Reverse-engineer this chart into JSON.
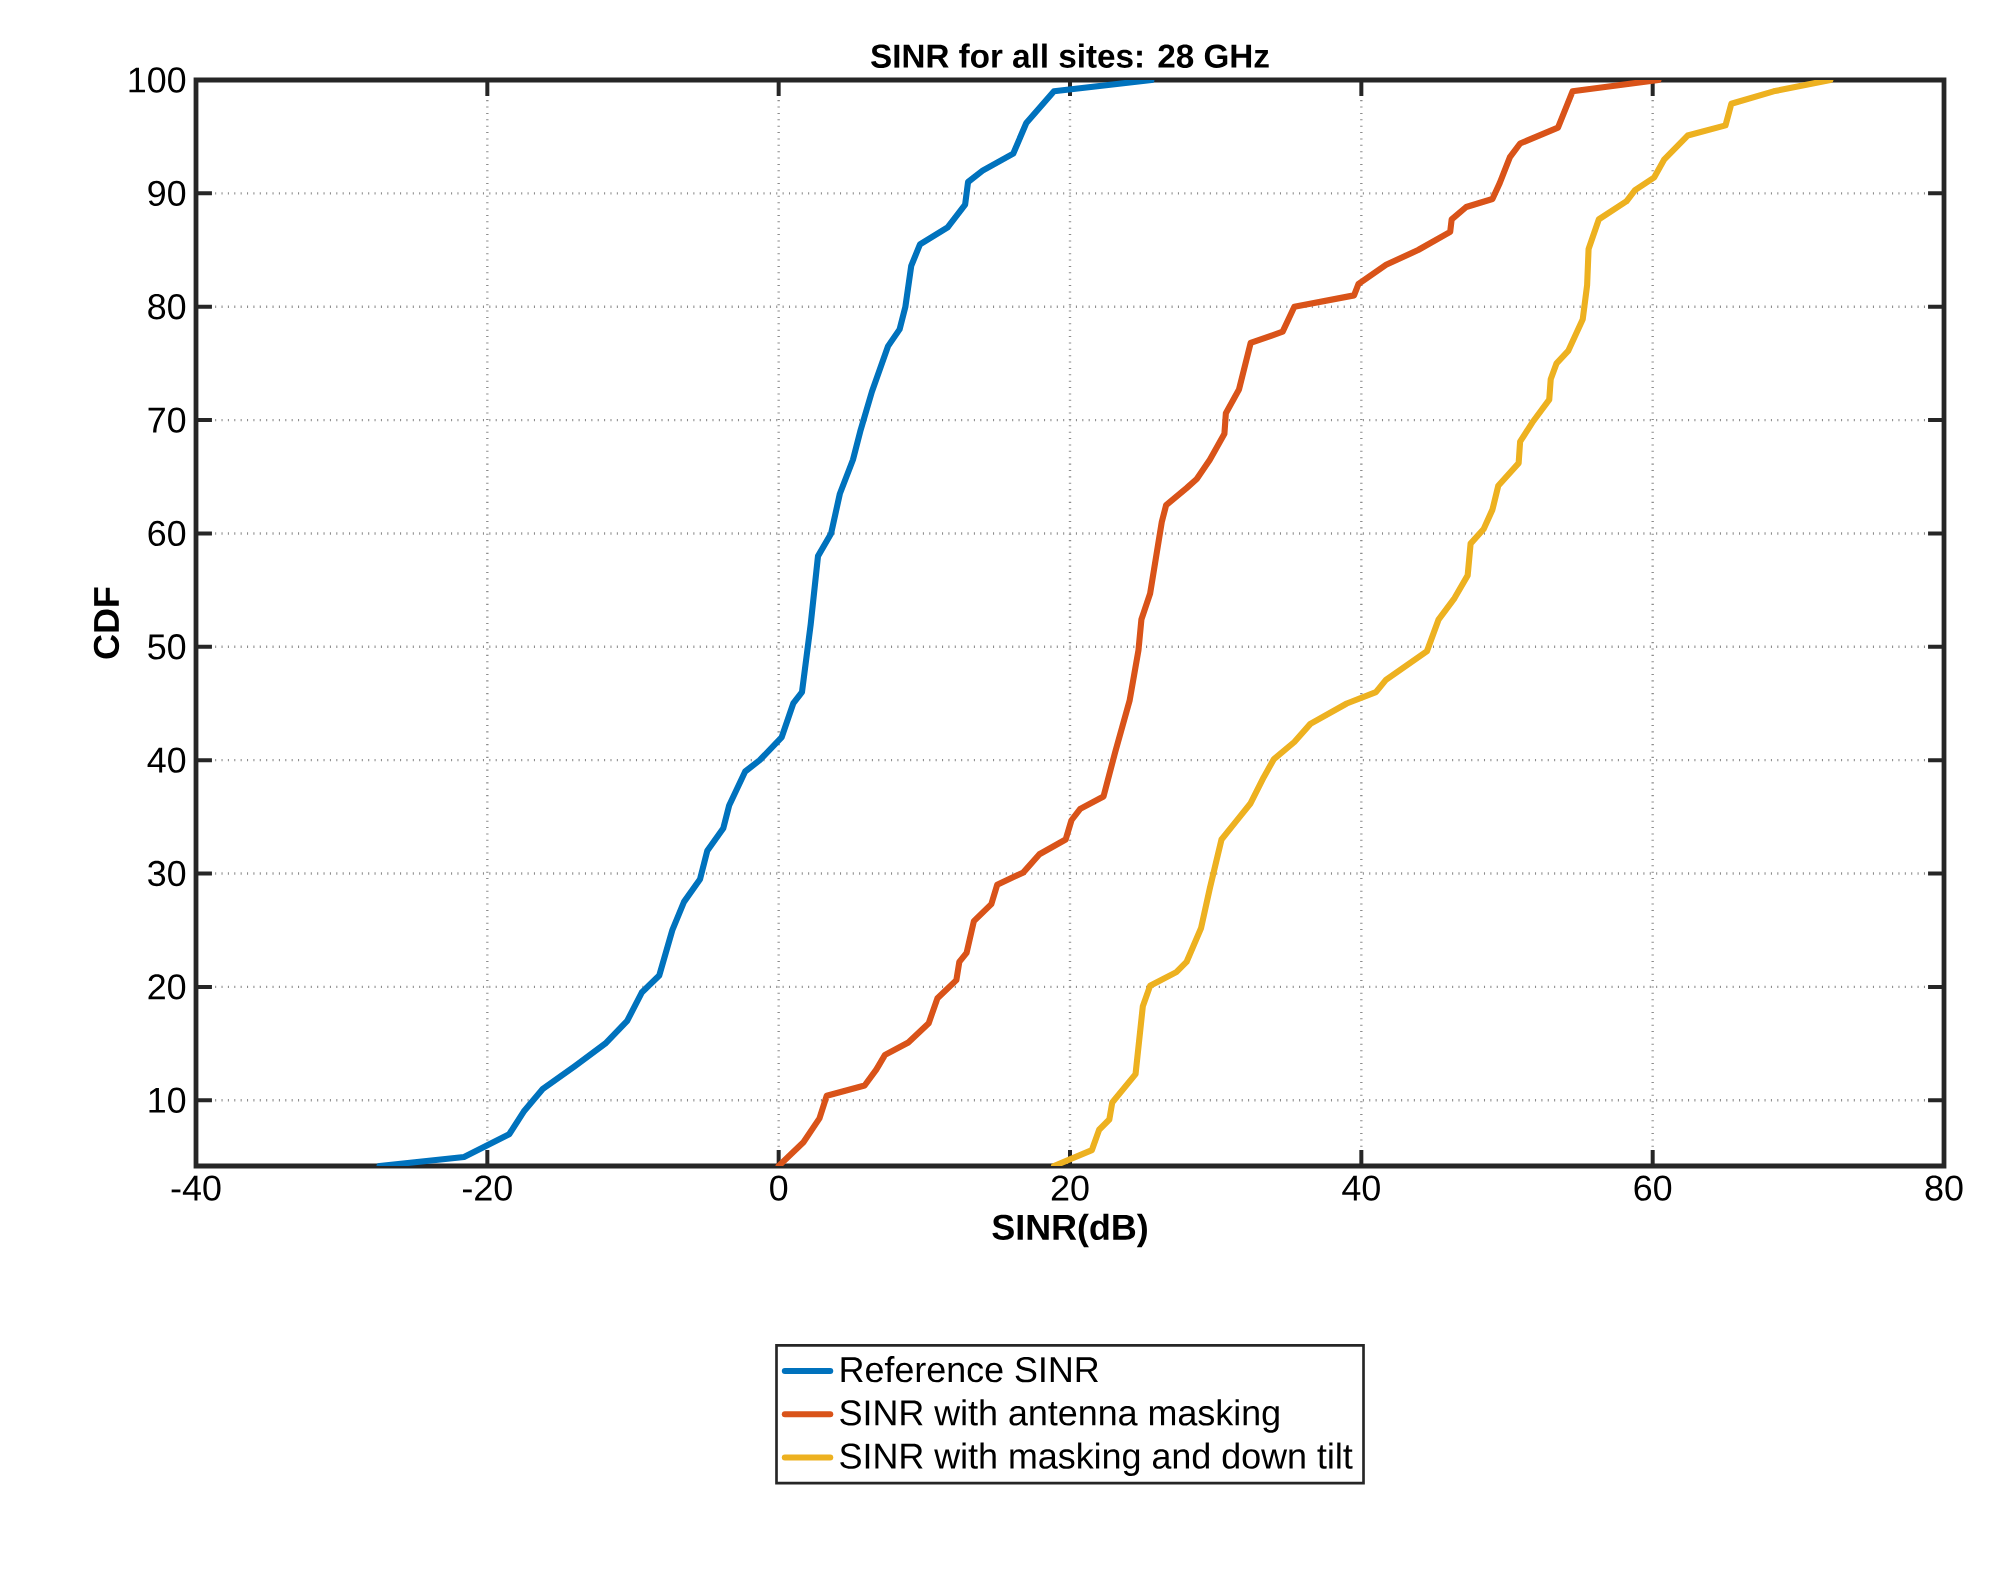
{
  "chart_data": {
    "type": "line",
    "title": "SINR for all sites: 28 GHz",
    "xlabel": "SINR(dB)",
    "ylabel": "CDF",
    "xlim": [
      -40,
      80
    ],
    "ylim": [
      4.2,
      100
    ],
    "xticks": [
      -40,
      -20,
      0,
      20,
      40,
      60,
      80
    ],
    "yticks": [
      10,
      20,
      30,
      40,
      50,
      60,
      70,
      80,
      90,
      100
    ],
    "grid": true,
    "legend": "bottom",
    "series": [
      {
        "name": "Reference SINR",
        "color": "#0072bd",
        "x": [
          -27.4,
          -21.6,
          -18.5,
          -17.5,
          -16.2,
          -14,
          -11.9,
          -10.4,
          -9.4,
          -8.2,
          -7.3,
          -6.5,
          -5.4,
          -4.9,
          -3.8,
          -3.4,
          -2.3,
          -1.3,
          0.2,
          1,
          1.6,
          1.9,
          2.2,
          2.7,
          3.6,
          4.2,
          5.1,
          5.6,
          6.4,
          7.5,
          8.3,
          8.7,
          9.1,
          9.7,
          11.6,
          12.8,
          13,
          14,
          16.1,
          17,
          18.9,
          25.6
        ],
        "values": [
          4.2,
          5,
          7,
          9,
          11,
          13,
          15,
          17,
          19.5,
          21,
          25,
          27.5,
          29.5,
          32,
          34,
          36,
          39,
          40,
          42,
          45,
          46,
          49,
          52,
          58,
          60,
          63.5,
          66.5,
          69,
          72.5,
          76.5,
          78,
          80,
          83.6,
          85.5,
          87,
          89,
          91,
          92,
          93.5,
          96.2,
          99,
          100
        ]
      },
      {
        "name": "SINR with antenna masking",
        "color": "#d95319",
        "x": [
          0,
          1.7,
          2.8,
          3.3,
          5.9,
          6.7,
          7.3,
          8.9,
          10.3,
          10.9,
          12.2,
          12.4,
          12.9,
          13.4,
          14.6,
          15,
          16.8,
          17.9,
          19.7,
          20.1,
          20.7,
          22.3,
          23.1,
          24.1,
          24.7,
          24.9,
          25.5,
          26.3,
          26.6,
          28,
          28.7,
          29.6,
          30.6,
          30.7,
          31.6,
          32.4,
          34.6,
          35.4,
          39.5,
          39.8,
          41.7,
          43.9,
          46.1,
          46.2,
          47.2,
          49,
          49.5,
          50.2,
          50.9,
          53.5,
          54.5,
          60.4
        ],
        "values": [
          4.2,
          6.3,
          8.4,
          10.4,
          11.3,
          12.7,
          14,
          15.1,
          16.8,
          19,
          20.6,
          22.2,
          23,
          25.8,
          27.3,
          29,
          30.1,
          31.7,
          33,
          34.7,
          35.7,
          36.8,
          40.7,
          45.3,
          49.7,
          52.4,
          54.7,
          61,
          62.5,
          64,
          64.8,
          66.5,
          68.8,
          70.6,
          72.7,
          76.8,
          77.8,
          80,
          81,
          82,
          83.7,
          85,
          86.6,
          87.7,
          88.8,
          89.5,
          90.9,
          93.2,
          94.4,
          95.8,
          99,
          100
        ]
      },
      {
        "name": "SINR with masking and down tilt",
        "color": "#edb120",
        "x": [
          18.9,
          21.5,
          22,
          22.7,
          22.9,
          24.5,
          25,
          25.5,
          27.3,
          28,
          29,
          29.6,
          30.4,
          31.4,
          32.4,
          33.3,
          34,
          35.4,
          36.5,
          39,
          41,
          41.7,
          44.5,
          45.3,
          46.4,
          47.3,
          47.5,
          48.4,
          49,
          49.4,
          50.8,
          50.9,
          51.8,
          52.9,
          53,
          53.4,
          54.2,
          55.2,
          55.5,
          55.6,
          56.3,
          58.2,
          58.8,
          60.1,
          60.8,
          62.4,
          65,
          65.4,
          68.3,
          72.2
        ],
        "values": [
          4.2,
          5.6,
          7.4,
          8.3,
          9.8,
          12.3,
          18.3,
          20.1,
          21.3,
          22.2,
          25.2,
          28.7,
          33,
          34.6,
          36.2,
          38.5,
          40.1,
          41.6,
          43.2,
          45,
          46,
          47.1,
          49.6,
          52.4,
          54.3,
          56.3,
          59.1,
          60.4,
          62.1,
          64.2,
          66.2,
          68.1,
          69.9,
          71.8,
          73.6,
          75,
          76.1,
          78.9,
          81.9,
          85.1,
          87.7,
          89.3,
          90.3,
          91.4,
          93,
          95.1,
          96,
          97.9,
          99,
          100
        ]
      }
    ]
  }
}
